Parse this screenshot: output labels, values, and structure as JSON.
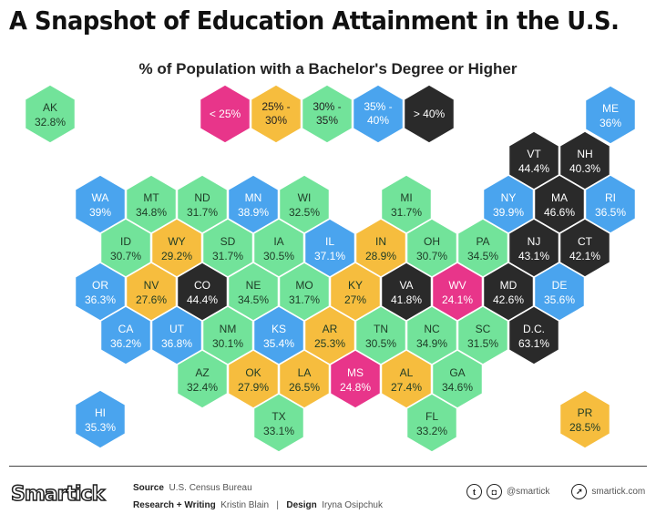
{
  "title": "A Snapshot of Education Attainment in the U.S.",
  "subtitle": "% of Population with a Bachelor's Degree or Higher",
  "colors": {
    "lt25": "#e8358a",
    "25to30": "#f6bd3e",
    "30to35": "#72e39a",
    "35to40": "#4aa4ee",
    "gt40": "#2a2a2a"
  },
  "legend": [
    {
      "label": "< 25%",
      "bin": "lt25"
    },
    {
      "label": "25% - 30%",
      "bin": "25to30"
    },
    {
      "label": "30% - 35%",
      "bin": "30to35"
    },
    {
      "label": "35% - 40%",
      "bin": "35to40"
    },
    {
      "label": "> 40%",
      "bin": "gt40"
    }
  ],
  "chart_data": {
    "type": "hex tile map",
    "title": "A Snapshot of Education Attainment in the U.S.",
    "subtitle": "% of Population with a Bachelor's Degree or Higher",
    "states": [
      {
        "state": "AK",
        "value": 32.8
      },
      {
        "state": "ME",
        "value": 36
      },
      {
        "state": "VT",
        "value": 44.4
      },
      {
        "state": "NH",
        "value": 40.3
      },
      {
        "state": "WA",
        "value": 39
      },
      {
        "state": "MT",
        "value": 34.8
      },
      {
        "state": "ND",
        "value": 31.7
      },
      {
        "state": "MN",
        "value": 38.9
      },
      {
        "state": "WI",
        "value": 32.5
      },
      {
        "state": "MI",
        "value": 31.7
      },
      {
        "state": "NY",
        "value": 39.9
      },
      {
        "state": "MA",
        "value": 46.6
      },
      {
        "state": "RI",
        "value": 36.5
      },
      {
        "state": "ID",
        "value": 30.7
      },
      {
        "state": "WY",
        "value": 29.2
      },
      {
        "state": "SD",
        "value": 31.7
      },
      {
        "state": "IA",
        "value": 30.5
      },
      {
        "state": "IL",
        "value": 37.1
      },
      {
        "state": "IN",
        "value": 28.9
      },
      {
        "state": "OH",
        "value": 30.7
      },
      {
        "state": "PA",
        "value": 34.5
      },
      {
        "state": "NJ",
        "value": 43.1
      },
      {
        "state": "CT",
        "value": 42.1
      },
      {
        "state": "OR",
        "value": 36.3
      },
      {
        "state": "NV",
        "value": 27.6
      },
      {
        "state": "CO",
        "value": 44.4
      },
      {
        "state": "NE",
        "value": 34.5
      },
      {
        "state": "MO",
        "value": 31.7
      },
      {
        "state": "KY",
        "value": 27
      },
      {
        "state": "VA",
        "value": 41.8
      },
      {
        "state": "WV",
        "value": 24.1
      },
      {
        "state": "MD",
        "value": 42.6
      },
      {
        "state": "DE",
        "value": 35.6
      },
      {
        "state": "CA",
        "value": 36.2
      },
      {
        "state": "UT",
        "value": 36.8
      },
      {
        "state": "NM",
        "value": 30.1
      },
      {
        "state": "KS",
        "value": 35.4
      },
      {
        "state": "AR",
        "value": 25.3
      },
      {
        "state": "TN",
        "value": 30.5
      },
      {
        "state": "NC",
        "value": 34.9
      },
      {
        "state": "SC",
        "value": 31.5
      },
      {
        "state": "D.C.",
        "value": 63.1
      },
      {
        "state": "AZ",
        "value": 32.4
      },
      {
        "state": "OK",
        "value": 27.9
      },
      {
        "state": "LA",
        "value": 26.5
      },
      {
        "state": "MS",
        "value": 24.8
      },
      {
        "state": "AL",
        "value": 27.4
      },
      {
        "state": "GA",
        "value": 34.6
      },
      {
        "state": "TX",
        "value": 33.1
      },
      {
        "state": "FL",
        "value": 33.2
      },
      {
        "state": "HI",
        "value": 35.3
      },
      {
        "state": "PR",
        "value": 28.5
      }
    ]
  },
  "footer": {
    "logo": "Smartick",
    "source_label": "Source",
    "source": "U.S. Census Bureau",
    "research_label": "Research + Writing",
    "research": "Kristin Blain",
    "separator": "|",
    "design_label": "Design",
    "design": "Iryna Osipchuk",
    "social_handle": "@smartick",
    "website": "smartick.com"
  }
}
